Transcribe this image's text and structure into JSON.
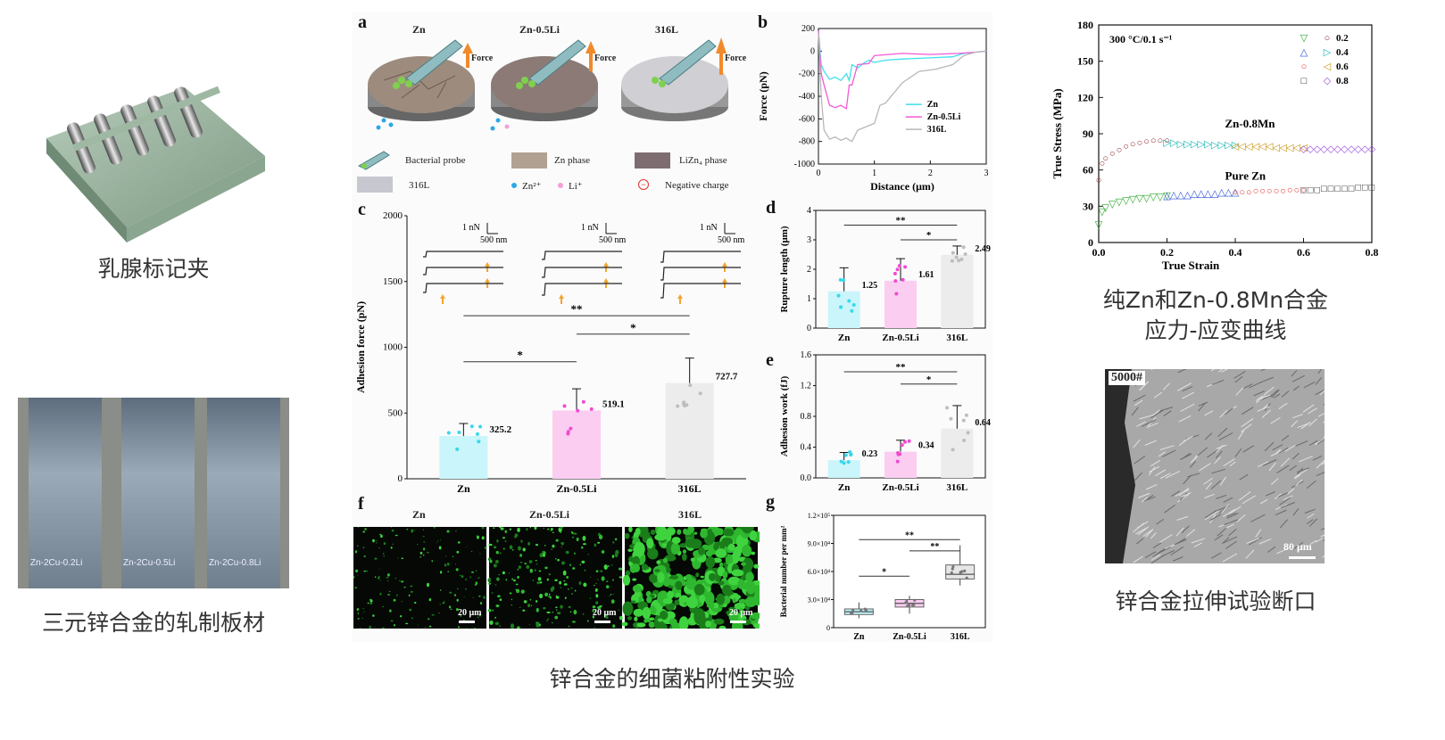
{
  "captions": {
    "clip": "乳腺标记夹",
    "sheet": "三元锌合金的轧制板材",
    "figure": "锌合金的细菌粘附性实验",
    "stress_strain": "纯Zn和Zn-0.8Mn合金\n应力-应变曲线",
    "fracture": "锌合金拉伸试验断口"
  },
  "sheet_labels": [
    "Zn-2Cu-0.2Li",
    "Zn-2Cu-0.5Li",
    "Zn-2Cu-0.8Li"
  ],
  "panel_a": {
    "letter": "a",
    "titles": [
      "Zn",
      "Zn-0.5Li",
      "316L"
    ],
    "force_label": "Force",
    "legend": {
      "probe": "Bacterial probe",
      "zn_phase": "Zn phase",
      "lizn4": "LiZn₄ phase",
      "s316": "316L",
      "zn2": "Zn²⁺",
      "li": "Li⁺",
      "neg": "Negative charge"
    }
  },
  "panel_letters": {
    "b": "b",
    "c": "c",
    "d": "d",
    "e": "e",
    "f": "f",
    "g": "g"
  },
  "panel_f": {
    "titles": [
      "Zn",
      "Zn-0.5Li",
      "316L"
    ],
    "scale": "20 μm"
  },
  "fracture": {
    "label": "5000#",
    "scale": "80 μm"
  },
  "inset_scale": {
    "force": "1 nN",
    "dist": "500 nm"
  },
  "chart_data": [
    {
      "id": "b",
      "type": "line",
      "xlabel": "Distance (μm)",
      "ylabel": "Force (pN)",
      "xlim": [
        0,
        3
      ],
      "ylim": [
        -1000,
        200
      ],
      "xticks": [
        0,
        1,
        2,
        3
      ],
      "yticks": [
        200,
        0,
        -200,
        -400,
        -600,
        -800,
        -1000
      ],
      "series": [
        {
          "name": "Zn",
          "color": "#3fe0ea",
          "points": [
            [
              0,
              180
            ],
            [
              0.05,
              -120
            ],
            [
              0.1,
              -180
            ],
            [
              0.2,
              -250
            ],
            [
              0.3,
              -230
            ],
            [
              0.4,
              -260
            ],
            [
              0.5,
              -200
            ],
            [
              0.55,
              -260
            ],
            [
              0.6,
              -120
            ],
            [
              0.7,
              -150
            ],
            [
              0.8,
              -110
            ],
            [
              0.9,
              -80
            ],
            [
              1.0,
              -100
            ],
            [
              1.2,
              -80
            ],
            [
              1.5,
              -70
            ],
            [
              2.0,
              -60
            ],
            [
              2.4,
              -50
            ],
            [
              2.6,
              -20
            ],
            [
              2.8,
              -10
            ],
            [
              3.0,
              0
            ]
          ]
        },
        {
          "name": "Zn-0.5Li",
          "color": "#f25ad6",
          "points": [
            [
              0,
              180
            ],
            [
              0.05,
              -200
            ],
            [
              0.1,
              -300
            ],
            [
              0.2,
              -480
            ],
            [
              0.3,
              -500
            ],
            [
              0.4,
              -480
            ],
            [
              0.5,
              -510
            ],
            [
              0.55,
              -300
            ],
            [
              0.6,
              -300
            ],
            [
              0.7,
              -120
            ],
            [
              0.9,
              -110
            ],
            [
              1.0,
              -40
            ],
            [
              1.5,
              -20
            ],
            [
              2.0,
              -30
            ],
            [
              2.5,
              -20
            ],
            [
              2.8,
              -10
            ],
            [
              3.0,
              0
            ]
          ]
        },
        {
          "name": "316L",
          "color": "#b8b8b8",
          "points": [
            [
              0,
              160
            ],
            [
              0.05,
              -400
            ],
            [
              0.1,
              -700
            ],
            [
              0.2,
              -780
            ],
            [
              0.3,
              -760
            ],
            [
              0.4,
              -790
            ],
            [
              0.5,
              -770
            ],
            [
              0.6,
              -800
            ],
            [
              0.7,
              -700
            ],
            [
              0.8,
              -680
            ],
            [
              1.0,
              -640
            ],
            [
              1.1,
              -480
            ],
            [
              1.2,
              -460
            ],
            [
              1.5,
              -280
            ],
            [
              1.8,
              -180
            ],
            [
              2.1,
              -160
            ],
            [
              2.4,
              -120
            ],
            [
              2.6,
              -40
            ],
            [
              2.8,
              -10
            ],
            [
              3.0,
              0
            ]
          ]
        }
      ]
    },
    {
      "id": "c",
      "type": "bar",
      "categories": [
        "Zn",
        "Zn-0.5Li",
        "316L"
      ],
      "values": [
        325.2,
        519.1,
        727.7
      ],
      "value_labels": [
        "325.2",
        "519.1",
        "727.7"
      ],
      "errors": [
        95,
        165,
        190
      ],
      "colors": [
        "#c9f5fb",
        "#fbcdf1",
        "#ececec"
      ],
      "dots": [
        "#38d8ea",
        "#f04ad2",
        "#bdbdbd"
      ],
      "ylabel": "Adhesion force (pN)",
      "ylim": [
        0,
        2000
      ],
      "yticks": [
        0,
        500,
        1000,
        1500,
        2000
      ],
      "significance": [
        "*",
        "*",
        "**"
      ]
    },
    {
      "id": "d",
      "type": "bar",
      "categories": [
        "Zn",
        "Zn-0.5Li",
        "316L"
      ],
      "values": [
        1.25,
        1.61,
        2.49
      ],
      "value_labels": [
        "1.25",
        "1.61",
        "2.49"
      ],
      "errors": [
        0.8,
        0.75,
        0.3
      ],
      "colors": [
        "#c9f5fb",
        "#fbcdf1",
        "#ececec"
      ],
      "dots": [
        "#38d8ea",
        "#f04ad2",
        "#bdbdbd"
      ],
      "ylabel": "Rupture length (μm)",
      "ylim": [
        0,
        4
      ],
      "yticks": [
        0,
        1,
        2,
        3,
        4
      ],
      "significance": [
        "**",
        "*"
      ]
    },
    {
      "id": "e",
      "type": "bar",
      "categories": [
        "Zn",
        "Zn-0.5Li",
        "316L"
      ],
      "values": [
        0.23,
        0.34,
        0.64
      ],
      "value_labels": [
        "0.23",
        "0.34",
        "0.64"
      ],
      "errors": [
        0.1,
        0.15,
        0.3
      ],
      "colors": [
        "#c9f5fb",
        "#fbcdf1",
        "#ececec"
      ],
      "dots": [
        "#38d8ea",
        "#f04ad2",
        "#bdbdbd"
      ],
      "ylabel": "Adhesion work (fJ)",
      "ylim": [
        0,
        1.6
      ],
      "yticks": [
        "0.0",
        "0.4",
        "0.8",
        "1.2",
        "1.6"
      ],
      "significance": [
        "**",
        "*"
      ]
    },
    {
      "id": "g",
      "type": "box",
      "categories": [
        "Zn",
        "Zn-0.5Li",
        "316L"
      ],
      "boxes": [
        {
          "min": 10000,
          "q1": 14000,
          "median": 17000,
          "q3": 20000,
          "max": 27000
        },
        {
          "min": 15000,
          "q1": 22000,
          "median": 26000,
          "q3": 30000,
          "max": 34000
        },
        {
          "min": 45000,
          "q1": 52000,
          "median": 57000,
          "q3": 67000,
          "max": 88000
        }
      ],
      "colors": [
        "#bff3fa",
        "#fbcdf1",
        "#e6e6e6"
      ],
      "ylabel": "Bacterial number per mm²",
      "ylim": [
        0,
        120000
      ],
      "yticks": [
        "0",
        "3.0×10⁴",
        "6.0×10⁴",
        "9.0×10⁴",
        "1.2×10⁵"
      ],
      "significance": [
        "*",
        "**",
        "**"
      ]
    },
    {
      "id": "stress-strain",
      "type": "scatter",
      "title": "300 °C/0.1 s⁻¹",
      "xlabel": "True Strain",
      "ylabel": "True Stress (MPa)",
      "xlim": [
        0,
        0.8
      ],
      "ylim": [
        0,
        180
      ],
      "xticks": [
        "0.0",
        "0.2",
        "0.4",
        "0.6",
        "0.8"
      ],
      "yticks": [
        0,
        30,
        60,
        90,
        120,
        150,
        180
      ],
      "annotations": [
        "Zn-0.8Mn",
        "Pure Zn"
      ],
      "legend": [
        {
          "symbol": "▽",
          "color": "#2aa52a",
          "label": ""
        },
        {
          "symbol": "○",
          "color": "#8b2a2a",
          "label": "0.2"
        },
        {
          "symbol": "△",
          "color": "#2b4fd8",
          "label": ""
        },
        {
          "symbol": "▷",
          "color": "#19b3b3",
          "label": "0.4"
        },
        {
          "symbol": "○",
          "color": "#e0332e",
          "label": ""
        },
        {
          "symbol": "◁",
          "color": "#c89516",
          "label": "0.6"
        },
        {
          "symbol": "□",
          "color": "#222222",
          "label": ""
        },
        {
          "symbol": "◇",
          "color": "#9b4fe0",
          "label": "0.8"
        }
      ],
      "series": [
        {
          "group": "Zn-0.8Mn",
          "color": "#8b2a2a",
          "x": [
            0.0,
            0.01,
            0.02,
            0.04,
            0.06,
            0.08,
            0.1,
            0.12,
            0.14,
            0.16,
            0.18,
            0.2
          ],
          "y": [
            52,
            66,
            70,
            74,
            77,
            80,
            82,
            83,
            84,
            85,
            85,
            85
          ]
        },
        {
          "group": "Zn-0.8Mn",
          "color": "#19b3b3",
          "x": [
            0.2,
            0.22,
            0.24,
            0.26,
            0.28,
            0.3,
            0.32,
            0.34,
            0.36,
            0.38,
            0.4
          ],
          "y": [
            83,
            83,
            82,
            82,
            82,
            82,
            82,
            81,
            81,
            81,
            81
          ]
        },
        {
          "group": "Zn-0.8Mn",
          "color": "#c89516",
          "x": [
            0.4,
            0.42,
            0.44,
            0.46,
            0.48,
            0.5,
            0.52,
            0.54,
            0.56,
            0.58,
            0.6
          ],
          "y": [
            80,
            80,
            80,
            80,
            80,
            80,
            79,
            79,
            79,
            79,
            79
          ]
        },
        {
          "group": "Zn-0.8Mn",
          "color": "#9b4fe0",
          "x": [
            0.6,
            0.62,
            0.64,
            0.66,
            0.68,
            0.7,
            0.72,
            0.74,
            0.76,
            0.78,
            0.8
          ],
          "y": [
            78,
            78,
            78,
            78,
            78,
            78,
            78,
            78,
            78,
            78,
            78
          ]
        },
        {
          "group": "Pure Zn",
          "color": "#2aa52a",
          "x": [
            0.0,
            0.01,
            0.02,
            0.04,
            0.06,
            0.08,
            0.1,
            0.12,
            0.14,
            0.16,
            0.18,
            0.2
          ],
          "y": [
            15,
            26,
            29,
            32,
            34,
            35,
            36,
            37,
            37,
            38,
            38,
            39
          ]
        },
        {
          "group": "Pure Zn",
          "color": "#2b4fd8",
          "x": [
            0.2,
            0.22,
            0.24,
            0.26,
            0.28,
            0.3,
            0.32,
            0.34,
            0.36,
            0.38,
            0.4
          ],
          "y": [
            39,
            40,
            40,
            40,
            41,
            41,
            41,
            41,
            42,
            42,
            42
          ]
        },
        {
          "group": "Pure Zn",
          "color": "#e0332e",
          "x": [
            0.4,
            0.42,
            0.44,
            0.46,
            0.48,
            0.5,
            0.52,
            0.54,
            0.56,
            0.58,
            0.6
          ],
          "y": [
            42,
            42,
            42,
            43,
            43,
            43,
            43,
            43,
            44,
            44,
            44
          ]
        },
        {
          "group": "Pure Zn",
          "color": "#222222",
          "x": [
            0.6,
            0.62,
            0.64,
            0.66,
            0.68,
            0.7,
            0.72,
            0.74,
            0.76,
            0.78,
            0.8
          ],
          "y": [
            44,
            44,
            44,
            45,
            45,
            45,
            45,
            45,
            46,
            46,
            46
          ]
        }
      ]
    }
  ]
}
